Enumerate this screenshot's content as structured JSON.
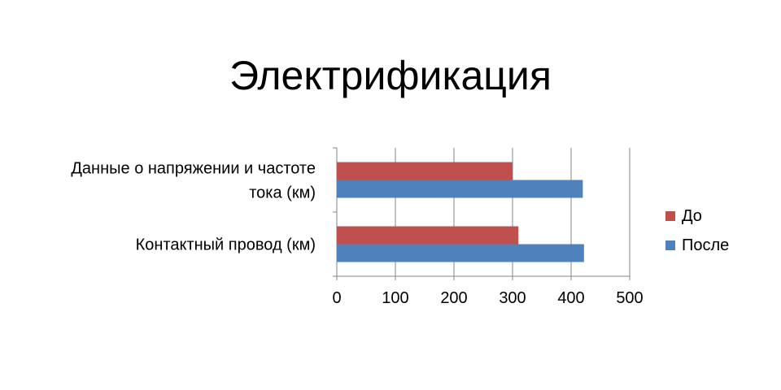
{
  "slide": {
    "title": "Электрификация"
  },
  "chart_data": {
    "type": "bar",
    "orientation": "horizontal",
    "categories": [
      "Данные о напряжении  и частоте тока (км)",
      "Контактный провод (км)"
    ],
    "category_lines": [
      [
        "Данные о напряжении  и частоте",
        "тока (км)"
      ],
      [
        "Контактный провод (км)"
      ]
    ],
    "series": [
      {
        "name": "До",
        "values": [
          300,
          310
        ],
        "color": "#c0504d"
      },
      {
        "name": "После",
        "values": [
          420,
          422
        ],
        "color": "#4f81bd"
      }
    ],
    "xlim": [
      0,
      500
    ],
    "xticks": [
      "0",
      "100",
      "200",
      "300",
      "400",
      "500"
    ],
    "grid": true,
    "legend": "right"
  }
}
